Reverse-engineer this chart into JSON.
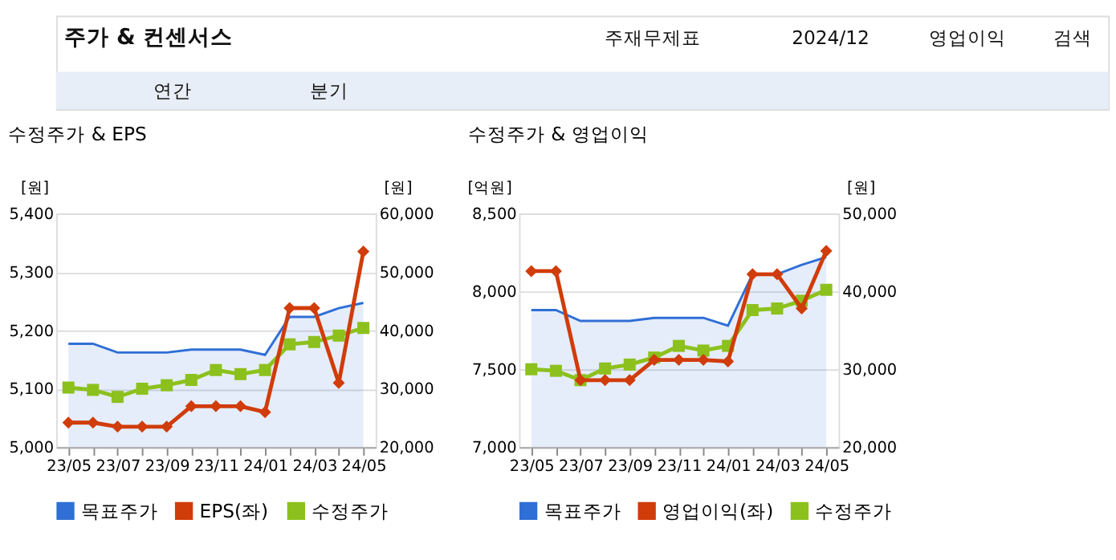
{
  "chart_data": [
    {
      "type": "other",
      "annotations": [
        "주가 & 컨센서스",
        "주재무제표",
        "2024/12",
        "영업이익",
        "검색",
        "연간",
        "분기"
      ]
    },
    {
      "type": "line",
      "title": "수정주가 & EPS",
      "ylabel": "[원]",
      "y2label": "[원]",
      "categories": [
        "23/05",
        null,
        "23/07",
        null,
        "23/09",
        null,
        "23/11",
        null,
        "24/01",
        null,
        "24/03",
        null,
        "24/05"
      ],
      "series": [
        {
          "name": "목표주가",
          "type": "area",
          "axis": "y2",
          "color": "#2f6fd6",
          "values": [
            37700,
            37700,
            36200,
            36200,
            36200,
            36700,
            36700,
            36700,
            35800,
            42300,
            42300,
            43800,
            44700
          ]
        },
        {
          "name": "EPS(좌)",
          "type": "line",
          "marker": "diamond",
          "color": "#d03c0a",
          "values": [
            5042,
            5042,
            5035,
            5035,
            5035,
            5070,
            5070,
            5070,
            5060,
            5238,
            5238,
            5110,
            5335
          ]
        },
        {
          "name": "수정주가",
          "type": "line",
          "axis": "y2",
          "marker": "square",
          "color": "#8cc11d",
          "values": [
            30200,
            29800,
            28600,
            30000,
            30600,
            31500,
            33200,
            32500,
            33200,
            37600,
            38000,
            39100,
            40400
          ]
        }
      ],
      "ylim": [
        5000,
        5400
      ],
      "yticks": [
        {
          "value": 5000,
          "label": "5,000"
        },
        {
          "value": 5100,
          "label": "5,100"
        },
        {
          "value": 5200,
          "label": "5,200"
        },
        {
          "value": 5300,
          "label": "5,300"
        },
        {
          "value": 5400,
          "label": "5,400"
        }
      ],
      "y2lim": [
        20000,
        60000
      ],
      "y2ticks": [
        {
          "value": 20000,
          "label": "20,000"
        },
        {
          "value": 30000,
          "label": "30,000"
        },
        {
          "value": 40000,
          "label": "40,000"
        },
        {
          "value": 50000,
          "label": "50,000"
        },
        {
          "value": 60000,
          "label": "60,000"
        }
      ],
      "grid": "y",
      "legend": "bottom"
    },
    {
      "type": "line",
      "title": "수정주가 & 영업이익",
      "ylabel": "[억원]",
      "y2label": "[원]",
      "categories": [
        "23/05",
        null,
        "23/07",
        null,
        "23/09",
        null,
        "23/11",
        null,
        "24/01",
        null,
        "24/03",
        null,
        "24/05"
      ],
      "series": [
        {
          "name": "목표주가",
          "type": "area",
          "axis": "y2",
          "color": "#2f6fd6",
          "values": [
            37600,
            37600,
            36200,
            36200,
            36200,
            36600,
            36600,
            36600,
            35600,
            42200,
            42200,
            43400,
            44400
          ]
        },
        {
          "name": "영업이익(좌)",
          "type": "line",
          "marker": "diamond",
          "color": "#d03c0a",
          "values": [
            8130,
            8130,
            7430,
            7430,
            7430,
            7560,
            7560,
            7560,
            7550,
            8110,
            8110,
            7890,
            8260
          ]
        },
        {
          "name": "수정주가",
          "type": "line",
          "axis": "y2",
          "marker": "square",
          "color": "#8cc11d",
          "values": [
            30000,
            29800,
            28600,
            30100,
            30600,
            31500,
            33000,
            32400,
            33000,
            37600,
            37800,
            38800,
            40200
          ]
        }
      ],
      "ylim": [
        7000,
        8500
      ],
      "yticks": [
        {
          "value": 7000,
          "label": "7,000"
        },
        {
          "value": 7500,
          "label": "7,500"
        },
        {
          "value": 8000,
          "label": "8,000"
        },
        {
          "value": 8500,
          "label": "8,500"
        }
      ],
      "y2lim": [
        20000,
        50000
      ],
      "y2ticks": [
        {
          "value": 20000,
          "label": "20,000"
        },
        {
          "value": 30000,
          "label": "30,000"
        },
        {
          "value": 40000,
          "label": "40,000"
        },
        {
          "value": 50000,
          "label": "50,000"
        }
      ],
      "grid": "y",
      "legend": "bottom"
    }
  ]
}
